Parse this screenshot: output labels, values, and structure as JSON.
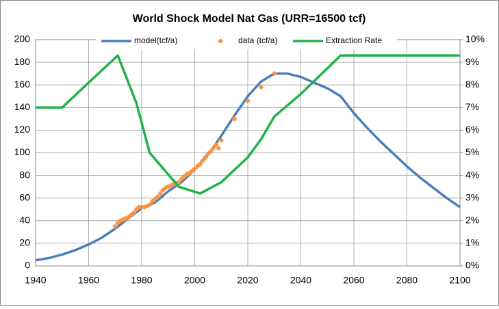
{
  "chart_data": {
    "type": "line",
    "title": "World Shock Model Nat Gas (URR=16500 tcf)",
    "xlim": [
      1940,
      2100
    ],
    "xticks": [
      1940,
      1960,
      1980,
      2000,
      2020,
      2040,
      2060,
      2080,
      2100
    ],
    "ylim": [
      0,
      200
    ],
    "yticks": [
      0,
      20,
      40,
      60,
      80,
      100,
      120,
      140,
      160,
      180,
      200
    ],
    "y2lim": [
      0,
      10
    ],
    "y2ticks": [
      {
        "value": 0,
        "label": "0%"
      },
      {
        "value": 1,
        "label": "1%"
      },
      {
        "value": 2,
        "label": "2%"
      },
      {
        "value": 3,
        "label": "3%"
      },
      {
        "value": 4,
        "label": "4%"
      },
      {
        "value": 5,
        "label": "5%"
      },
      {
        "value": 6,
        "label": "6%"
      },
      {
        "value": 7,
        "label": "7%"
      },
      {
        "value": 8,
        "label": "8%"
      },
      {
        "value": 9,
        "label": "9%"
      },
      {
        "value": 10,
        "label": "10%"
      }
    ],
    "grid": true,
    "series": [
      {
        "name": "model(tcf/a)",
        "color": "#4a7ebb",
        "style": "line",
        "x": [
          1940,
          1945,
          1950,
          1955,
          1960,
          1965,
          1970,
          1975,
          1980,
          1982,
          1985,
          1990,
          1995,
          2000,
          2005,
          2010,
          2015,
          2020,
          2025,
          2030,
          2035,
          2040,
          2045,
          2050,
          2055,
          2060,
          2065,
          2070,
          2075,
          2080,
          2085,
          2090,
          2095,
          2100
        ],
        "values": [
          5,
          7,
          10,
          14,
          19,
          25,
          33,
          42,
          51,
          53,
          56,
          66,
          74,
          85,
          98,
          115,
          133,
          150,
          163,
          170,
          170,
          167,
          162,
          157,
          150,
          135,
          122,
          110,
          99,
          88,
          78,
          69,
          60,
          52
        ]
      },
      {
        "name": "data (tcf/a)",
        "color": "#f79646",
        "style": "marker",
        "x": [
          1970,
          1971,
          1972,
          1973,
          1974,
          1975,
          1976,
          1977,
          1978,
          1979,
          1980,
          1981,
          1982,
          1983,
          1984,
          1985,
          1986,
          1987,
          1988,
          1989,
          1990,
          1991,
          1992,
          1993,
          1994,
          1995,
          1996,
          1997,
          1998,
          1999,
          2000,
          2001,
          2002,
          2003,
          2004,
          2005,
          2006,
          2007,
          2008,
          2009,
          2010,
          2015,
          2020,
          2025,
          2030
        ],
        "values": [
          35,
          38,
          40,
          41,
          42,
          43,
          45,
          47,
          50,
          52,
          52,
          52,
          53,
          54,
          57,
          59,
          61,
          64,
          67,
          69,
          70,
          71,
          72,
          73,
          74,
          77,
          79,
          81,
          82,
          84,
          86,
          88,
          90,
          93,
          96,
          99,
          101,
          104,
          107,
          104,
          111,
          130,
          146,
          158,
          170
        ]
      },
      {
        "name": "Extraction Rate",
        "color": "#1fb14a",
        "style": "line",
        "axis": "y2",
        "x": [
          1940,
          1950,
          1960,
          1971,
          1978,
          1983,
          1994,
          2002,
          2010,
          2020,
          2025,
          2030,
          2040,
          2055,
          2100
        ],
        "values": [
          7,
          7,
          8.1,
          9.3,
          7.2,
          5.0,
          3.5,
          3.2,
          3.7,
          4.8,
          5.6,
          6.6,
          7.6,
          9.3,
          9.3
        ]
      }
    ]
  }
}
